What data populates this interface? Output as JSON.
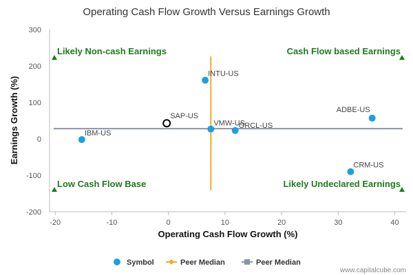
{
  "chart_data": {
    "type": "scatter",
    "title": "Operating Cash Flow Growth Versus Earnings Growth",
    "xlabel": "Operating Cash Flow Growth (%)",
    "ylabel": "Earnings Growth (%)",
    "xlim": [
      -21,
      42
    ],
    "ylim": [
      -200,
      300
    ],
    "xticks": [
      "-20",
      "-10",
      "0",
      "10",
      "20",
      "30",
      "40"
    ],
    "yticks": [
      "300",
      "200",
      "100",
      "0",
      "-100",
      "-200"
    ],
    "grid": false,
    "points": [
      {
        "label": "INTU-US",
        "x": 6.5,
        "y": 161,
        "highlight": false
      },
      {
        "label": "SAP-US",
        "x": -0.3,
        "y": 43,
        "highlight": true
      },
      {
        "label": "VMW-US",
        "x": 7.5,
        "y": 27,
        "highlight": false
      },
      {
        "label": "ORCL-US",
        "x": 11.8,
        "y": 23,
        "highlight": false
      },
      {
        "label": "ADBE-US",
        "x": 36.0,
        "y": 57,
        "highlight": false
      },
      {
        "label": "IBM-US",
        "x": -15.3,
        "y": -2,
        "highlight": false
      },
      {
        "label": "CRM-US",
        "x": 32.2,
        "y": -90,
        "highlight": false
      }
    ],
    "peer_median_x": 7.5,
    "peer_median_y": 28,
    "quadrants": [
      {
        "label": "Likely Non-cash Earnings",
        "corner": "top-left"
      },
      {
        "label": "Cash Flow based Earnings",
        "corner": "top-right"
      },
      {
        "label": "Low Cash Flow Base",
        "corner": "bottom-left"
      },
      {
        "label": "Likely Undeclared Earnings",
        "corner": "bottom-right"
      }
    ],
    "legend": [
      {
        "label": "Symbol",
        "marker": "circle"
      },
      {
        "label": "Peer Median",
        "marker": "orange-line"
      },
      {
        "label": "Peer Median",
        "marker": "gray-line"
      }
    ],
    "legend_placement": "bottom-center",
    "colors": {
      "point": "#1ba1e2",
      "highlight_stroke": "#000000",
      "vertical_median": "#f5a623",
      "horizontal_median": "#8c94a8",
      "quadrant_text": "#1f7a1f",
      "quadrant_marker": "#1a7f1a",
      "axis": "#bbbbbb"
    }
  },
  "watermark": "www.capitalcube.com"
}
